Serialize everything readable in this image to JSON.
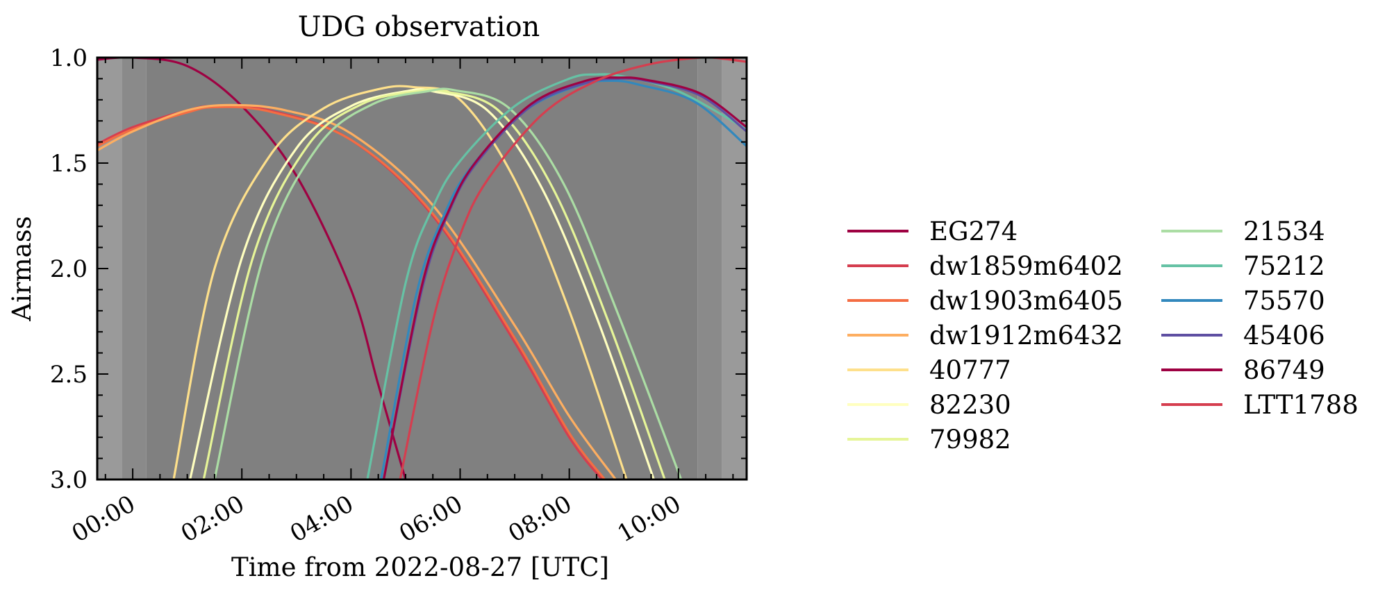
{
  "chart_data": {
    "type": "line",
    "title": "UDG observation",
    "xlabel": "Time from 2022-08-27 [UTC]",
    "ylabel": "Airmass",
    "xlim": [
      -0.65,
      11.25
    ],
    "ylim": [
      1.0,
      3.0
    ],
    "y_inverted": true,
    "grid": false,
    "legend_position": "right",
    "x_ticks": [
      {
        "value": 0,
        "label": "00:00"
      },
      {
        "value": 2,
        "label": "02:00"
      },
      {
        "value": 4,
        "label": "04:00"
      },
      {
        "value": 6,
        "label": "06:00"
      },
      {
        "value": 8,
        "label": "08:00"
      },
      {
        "value": 10,
        "label": "10:00"
      }
    ],
    "y_ticks": [
      {
        "value": 1.0,
        "label": "1.0"
      },
      {
        "value": 1.5,
        "label": "1.5"
      },
      {
        "value": 2.0,
        "label": "2.0"
      },
      {
        "value": 2.5,
        "label": "2.5"
      },
      {
        "value": 3.0,
        "label": "3.0"
      }
    ],
    "twilight_bands": [
      {
        "from": -0.65,
        "to": -0.2,
        "color": "#9a9a9a"
      },
      {
        "from": -0.2,
        "to": 0.25,
        "color": "#8a8a8a"
      },
      {
        "from": 0.25,
        "to": 10.35,
        "color": "#808080"
      },
      {
        "from": 10.35,
        "to": 10.8,
        "color": "#8a8a8a"
      },
      {
        "from": 10.8,
        "to": 11.25,
        "color": "#9a9a9a"
      }
    ],
    "series": [
      {
        "name": "EG274",
        "color": "#9e0142",
        "x": [
          -0.65,
          0.0,
          1.0,
          2.0,
          3.0,
          4.0,
          4.5,
          5.0
        ],
        "y": [
          1.01,
          1.0,
          1.04,
          1.23,
          1.56,
          2.1,
          2.55,
          3.0
        ]
      },
      {
        "name": "dw1859m6402",
        "color": "#d53e4f",
        "x": [
          -0.65,
          0.0,
          1.0,
          1.5,
          2.5,
          4.0,
          5.5,
          7.0,
          8.0,
          8.6
        ],
        "y": [
          1.41,
          1.33,
          1.25,
          1.23,
          1.25,
          1.39,
          1.75,
          2.35,
          2.8,
          3.0
        ]
      },
      {
        "name": "dw1903m6405",
        "color": "#f46d43",
        "x": [
          -0.65,
          0.0,
          1.0,
          1.5,
          2.5,
          4.0,
          5.5,
          7.0,
          8.0,
          8.65
        ],
        "y": [
          1.42,
          1.34,
          1.26,
          1.235,
          1.255,
          1.39,
          1.74,
          2.33,
          2.78,
          3.0
        ]
      },
      {
        "name": "dw1912m6432",
        "color": "#fdae61",
        "x": [
          -0.65,
          0.0,
          1.0,
          1.8,
          2.8,
          4.0,
          5.5,
          7.0,
          8.0,
          8.85
        ],
        "y": [
          1.44,
          1.35,
          1.25,
          1.225,
          1.25,
          1.36,
          1.7,
          2.27,
          2.7,
          3.0
        ]
      },
      {
        "name": "40777",
        "color": "#fee08b",
        "x": [
          0.75,
          1.5,
          2.5,
          3.5,
          4.5,
          5.15,
          6.0,
          7.0,
          8.0,
          9.05
        ],
        "y": [
          3.0,
          2.0,
          1.47,
          1.24,
          1.15,
          1.14,
          1.2,
          1.58,
          2.2,
          3.0
        ]
      },
      {
        "name": "82230",
        "color": "#ffffbf",
        "x": [
          1.05,
          2.0,
          3.0,
          4.0,
          5.0,
          5.5,
          6.5,
          7.5,
          8.5,
          9.55
        ],
        "y": [
          3.0,
          1.95,
          1.43,
          1.23,
          1.16,
          1.16,
          1.25,
          1.62,
          2.23,
          3.0
        ]
      },
      {
        "name": "79982",
        "color": "#e6f598",
        "x": [
          1.3,
          2.2,
          3.2,
          4.2,
          5.2,
          5.7,
          6.7,
          7.7,
          8.7,
          9.75
        ],
        "y": [
          3.0,
          1.95,
          1.42,
          1.22,
          1.16,
          1.16,
          1.25,
          1.62,
          2.24,
          3.0
        ]
      },
      {
        "name": "21534",
        "color": "#abdda4",
        "x": [
          1.5,
          2.4,
          3.4,
          4.4,
          5.4,
          5.9,
          6.9,
          7.9,
          8.9,
          10.05
        ],
        "y": [
          3.0,
          1.94,
          1.42,
          1.22,
          1.16,
          1.155,
          1.24,
          1.6,
          2.22,
          3.0
        ]
      },
      {
        "name": "75212",
        "color": "#66c2a5",
        "x": [
          4.3,
          5.0,
          5.5,
          6.0,
          7.0,
          8.0,
          8.5,
          9.0,
          10.0,
          11.25
        ],
        "y": [
          3.0,
          2.07,
          1.71,
          1.49,
          1.23,
          1.1,
          1.08,
          1.09,
          1.16,
          1.34
        ]
      },
      {
        "name": "75570",
        "color": "#3288bd",
        "x": [
          4.55,
          5.2,
          5.7,
          6.2,
          7.2,
          8.2,
          8.8,
          9.3,
          10.3,
          11.25
        ],
        "y": [
          3.0,
          2.12,
          1.75,
          1.52,
          1.25,
          1.13,
          1.11,
          1.13,
          1.21,
          1.42
        ]
      },
      {
        "name": "45406",
        "color": "#5e4fa2",
        "x": [
          4.6,
          5.3,
          5.8,
          6.3,
          7.3,
          8.3,
          8.9,
          9.4,
          10.4,
          11.25
        ],
        "y": [
          3.0,
          2.1,
          1.73,
          1.5,
          1.23,
          1.12,
          1.1,
          1.11,
          1.18,
          1.35
        ]
      },
      {
        "name": "86749",
        "color": "#9e0142",
        "x": [
          4.6,
          5.3,
          5.8,
          6.3,
          7.3,
          8.3,
          8.9,
          9.4,
          10.4,
          11.25
        ],
        "y": [
          3.0,
          2.08,
          1.72,
          1.49,
          1.22,
          1.11,
          1.095,
          1.105,
          1.17,
          1.33
        ]
      },
      {
        "name": "LTT1788",
        "color": "#d53e4f",
        "x": [
          4.9,
          5.5,
          6.0,
          6.5,
          7.5,
          8.5,
          9.5,
          10.4,
          10.8,
          11.25
        ],
        "y": [
          3.0,
          2.25,
          1.84,
          1.58,
          1.27,
          1.11,
          1.03,
          1.0,
          1.005,
          1.02
        ]
      }
    ]
  }
}
